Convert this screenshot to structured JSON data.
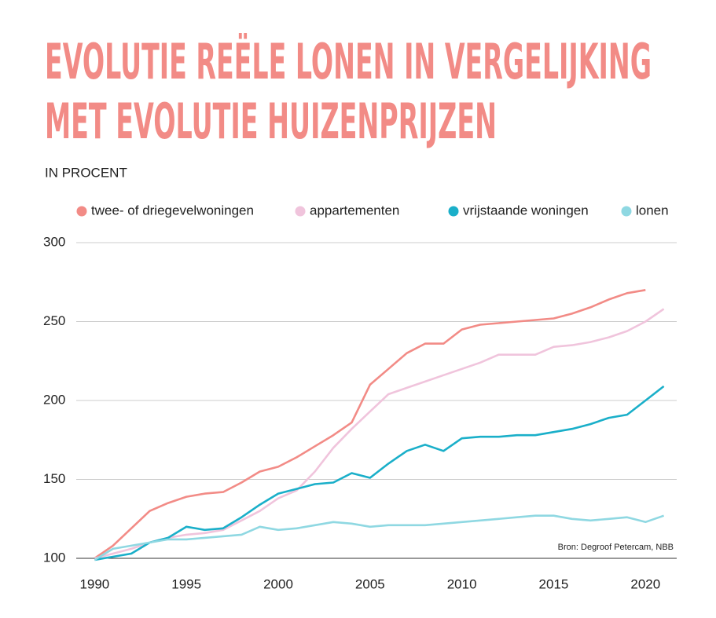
{
  "chart_data": {
    "type": "line",
    "title": [
      "EVOLUTIE REËLE LONEN IN VERGELIJKING",
      "MET EVOLUTIE HUIZENPRIJZEN"
    ],
    "subtitle": "IN PROCENT",
    "source": "Bron: Degroof Petercam, NBB",
    "x": [
      1990,
      1991,
      1992,
      1993,
      1994,
      1995,
      1996,
      1997,
      1998,
      1999,
      2000,
      2001,
      2002,
      2003,
      2004,
      2005,
      2006,
      2007,
      2008,
      2009,
      2010,
      2011,
      2012,
      2013,
      2014,
      2015,
      2016,
      2017,
      2018,
      2019,
      2020,
      2021
    ],
    "series": [
      {
        "name": "twee- of driegevelwoningen",
        "color": "#f28b86",
        "values": [
          100,
          108,
          119,
          130,
          135,
          139,
          141,
          142,
          148,
          155,
          158,
          164,
          171,
          178,
          186,
          210,
          220,
          230,
          236,
          236,
          245,
          248,
          249,
          250,
          251,
          252,
          255,
          259,
          264,
          268,
          270,
          null
        ]
      },
      {
        "name": "appartementen",
        "color": "#f0c4dc",
        "values": [
          100,
          103,
          106,
          110,
          113,
          115,
          116,
          118,
          124,
          130,
          138,
          143,
          155,
          170,
          182,
          193,
          204,
          208,
          212,
          216,
          220,
          224,
          229,
          229,
          229,
          234,
          235,
          237,
          240,
          244,
          250,
          258
        ]
      },
      {
        "name": "vrijstaande woningen",
        "color": "#1aafc9",
        "values": [
          99,
          101,
          103,
          110,
          113,
          120,
          118,
          119,
          126,
          134,
          141,
          144,
          147,
          148,
          154,
          151,
          160,
          168,
          172,
          168,
          176,
          177,
          177,
          178,
          178,
          180,
          182,
          185,
          189,
          191,
          200,
          209
        ]
      },
      {
        "name": "lonen",
        "color": "#8fd8e2",
        "values": [
          99,
          106,
          108,
          110,
          112,
          112,
          113,
          114,
          115,
          120,
          118,
          119,
          121,
          123,
          122,
          120,
          121,
          121,
          121,
          122,
          123,
          124,
          125,
          126,
          127,
          127,
          125,
          124,
          125,
          126,
          123,
          127
        ]
      }
    ],
    "xlim": [
      1989,
      2021.7
    ],
    "xticks": [
      1990,
      1995,
      2000,
      2005,
      2010,
      2015,
      2020
    ],
    "ylim": [
      100,
      300
    ],
    "yticks": [
      100,
      150,
      200,
      250,
      300
    ],
    "grid": true
  }
}
